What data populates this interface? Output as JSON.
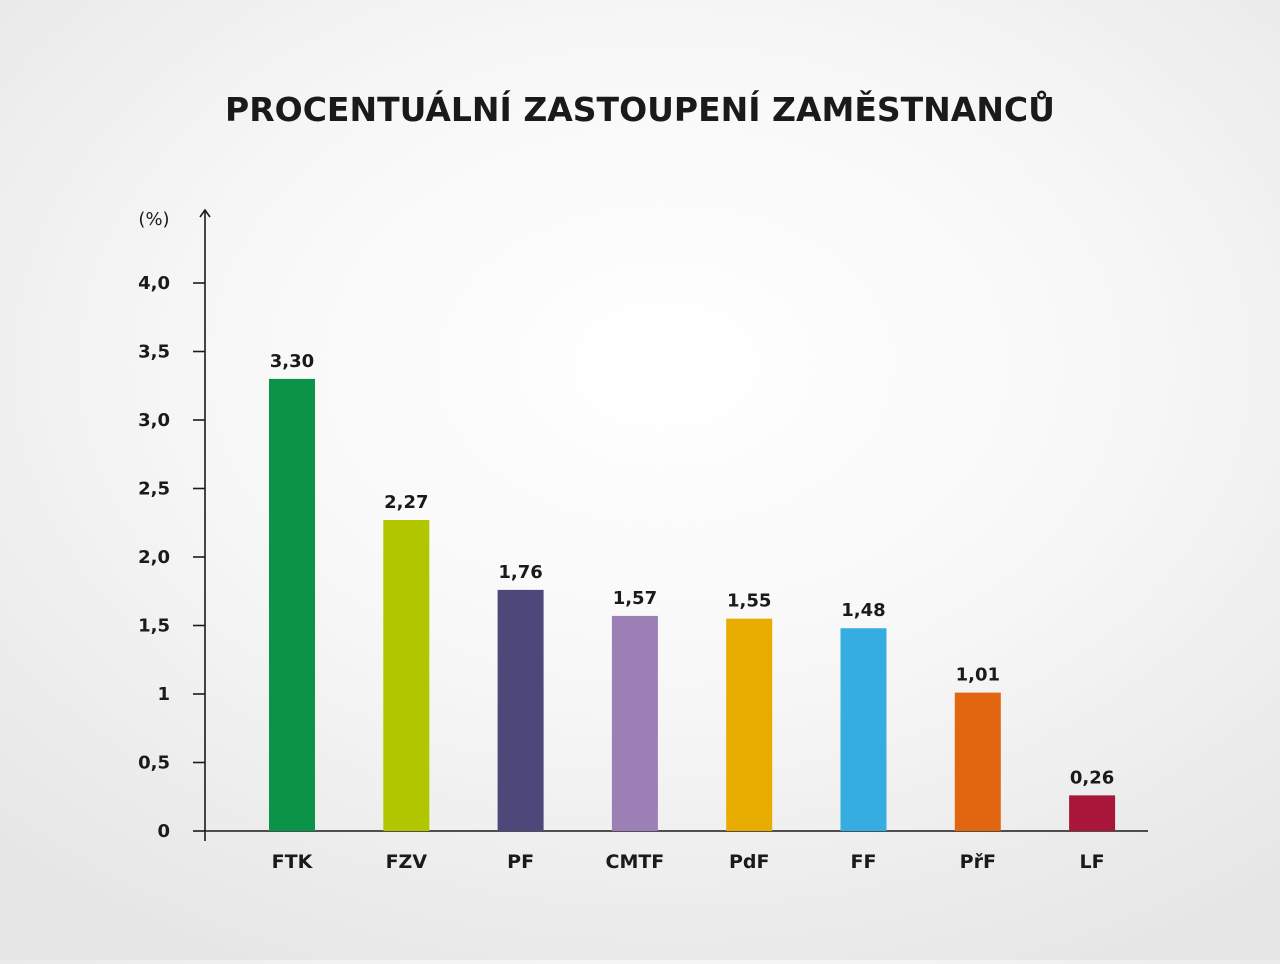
{
  "chart_data": {
    "type": "bar",
    "title": "PROCENTUÁLNÍ ZASTOUPENÍ ZAMĚSTNANCŮ",
    "ylabel": "(%)",
    "xlabel": "",
    "ylim": [
      0,
      4.0
    ],
    "yticks": [
      0,
      0.5,
      1,
      1.5,
      2.0,
      2.5,
      3.0,
      3.5,
      4.0
    ],
    "ytick_labels": [
      "0",
      "0,5",
      "1",
      "1,5",
      "2,0",
      "2,5",
      "3,0",
      "3,5",
      "4,0"
    ],
    "grid": false,
    "legend": "none",
    "categories": [
      "FTK",
      "FZV",
      "PF",
      "CMTF",
      "PdF",
      "FF",
      "PřF",
      "LF"
    ],
    "values": [
      3.3,
      2.27,
      1.76,
      1.57,
      1.55,
      1.48,
      1.01,
      0.26
    ],
    "value_labels": [
      "3,30",
      "2,27",
      "1,76",
      "1,57",
      "1,55",
      "1,48",
      "1,01",
      "0,26"
    ],
    "colors": [
      "#0b9447",
      "#b2c600",
      "#4e4779",
      "#9c7fb4",
      "#e8ab00",
      "#35ade0",
      "#e2650f",
      "#a8173a"
    ]
  }
}
